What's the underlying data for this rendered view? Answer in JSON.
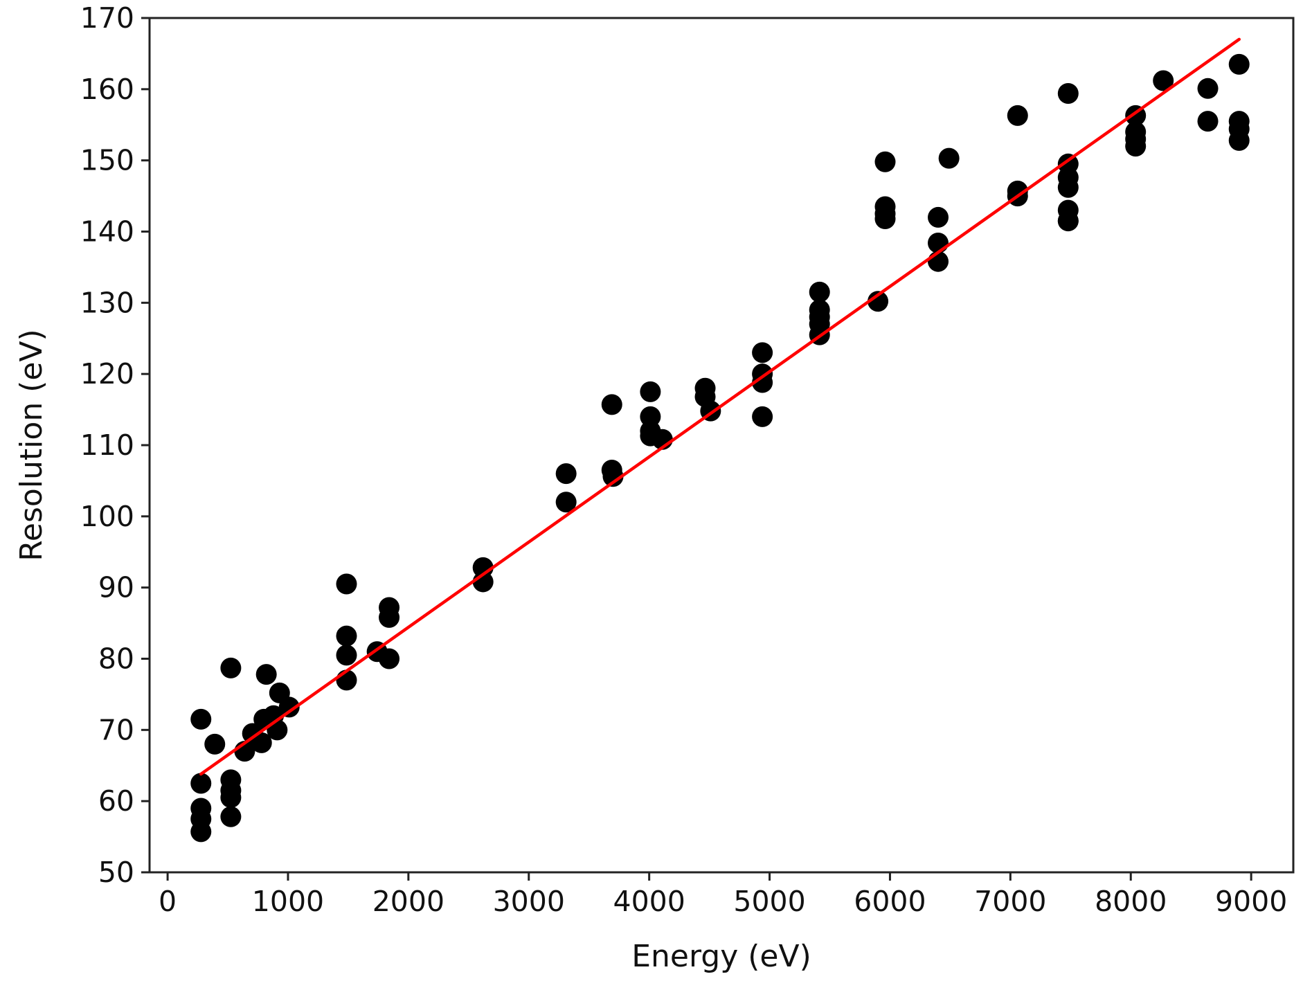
{
  "chart_data": {
    "type": "scatter",
    "title": "",
    "xlabel": "Energy (eV)",
    "ylabel": "Resolution (eV)",
    "xlim": [
      -150,
      9350
    ],
    "ylim": [
      50,
      170
    ],
    "xticks": [
      0,
      1000,
      2000,
      3000,
      4000,
      5000,
      6000,
      7000,
      8000,
      9000
    ],
    "yticks": [
      50,
      60,
      70,
      80,
      90,
      100,
      110,
      120,
      130,
      140,
      150,
      160,
      170
    ],
    "grid": false,
    "legend": "none",
    "colors": {
      "points": "#000000",
      "fit": "#ff0000",
      "axes": "#222222"
    },
    "series": [
      {
        "kind": "points",
        "x": [
          277,
          277,
          277,
          277,
          277,
          392,
          525,
          525,
          525,
          525,
          525,
          640,
          705,
          780,
          800,
          820,
          880,
          910,
          930,
          1010,
          1486,
          1486,
          1486,
          1486,
          1740,
          1840,
          1840,
          1840,
          2620,
          2620,
          3310,
          3310,
          3690,
          3690,
          3700,
          4010,
          4010,
          4010,
          4010,
          4110,
          4465,
          4465,
          4510,
          4940,
          4940,
          4940,
          4940,
          5415,
          5415,
          5415,
          5415,
          5415,
          5900,
          5960,
          5960,
          5960,
          5960,
          6400,
          6400,
          6400,
          6490,
          7060,
          7060,
          7060,
          7480,
          7480,
          7480,
          7480,
          7480,
          7480,
          7480,
          8040,
          8040,
          8040,
          8040,
          8270,
          8640,
          8640,
          8900,
          8900,
          8900,
          8900
        ],
        "y": [
          71.5,
          62.5,
          59,
          57.5,
          55.7,
          68,
          78.7,
          63,
          61.5,
          60.5,
          57.8,
          67,
          69.5,
          68.2,
          71.5,
          77.8,
          72,
          70,
          75.2,
          73.2,
          90.5,
          83.2,
          80.5,
          77,
          81,
          87.2,
          85.8,
          80,
          92.8,
          90.8,
          106,
          102,
          115.7,
          106.5,
          105.6,
          117.5,
          114,
          112,
          111.3,
          110.8,
          118,
          116.8,
          114.8,
          123,
          120,
          118.8,
          114,
          131.5,
          129,
          128,
          127,
          125.5,
          130.2,
          149.8,
          143.5,
          142.5,
          141.8,
          142,
          138.4,
          135.8,
          150.3,
          156.3,
          145.7,
          145,
          159.4,
          149.5,
          147.6,
          146.2,
          143,
          141.5,
          141.5,
          156.3,
          154,
          153,
          152,
          161.2,
          160.1,
          155.5,
          163.5,
          155.5,
          154.4,
          152.8
        ]
      },
      {
        "kind": "fit",
        "x": [
          277,
          8900
        ],
        "y": [
          63.8,
          167.0
        ]
      }
    ]
  }
}
